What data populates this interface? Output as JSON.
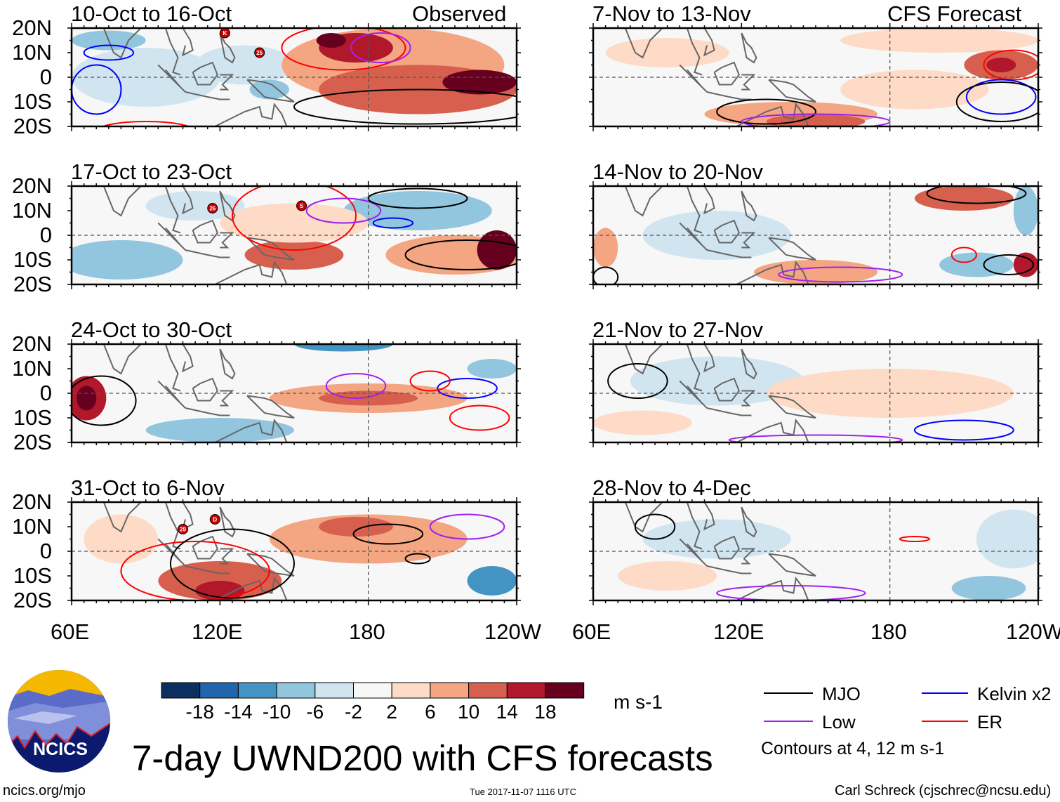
{
  "figure": {
    "title": "7-day UWND200 with CFS forecasts",
    "website": "ncics.org/mjo",
    "timestamp": "Tue 2017-11-07 1116 UTC",
    "author": "Carl Schreck (cjschrec@ncsu.edu)",
    "logo_text": "NCICS"
  },
  "columns": {
    "left_label": "Observed",
    "right_label": "CFS Forecast"
  },
  "panels_left": [
    {
      "title": "10-Oct to 16-Oct",
      "storms": [
        "K",
        "25"
      ]
    },
    {
      "title": "17-Oct to 23-Oct",
      "storms": [
        "26",
        "S"
      ]
    },
    {
      "title": "24-Oct to 30-Oct",
      "storms": []
    },
    {
      "title": "31-Oct to 6-Nov",
      "storms": [
        "29",
        "D"
      ]
    }
  ],
  "panels_right": [
    {
      "title": "7-Nov to 13-Nov"
    },
    {
      "title": "14-Nov to 20-Nov"
    },
    {
      "title": "21-Nov to 27-Nov"
    },
    {
      "title": "28-Nov to 4-Dec"
    }
  ],
  "axes": {
    "lat_labels": [
      "20N",
      "10N",
      "0",
      "10S",
      "20S"
    ],
    "lon_labels": [
      "60E",
      "120E",
      "180",
      "120W"
    ]
  },
  "colorbar": {
    "unit": "m s-1",
    "labels": [
      "-18",
      "-14",
      "-10",
      "-6",
      "-2",
      "2",
      "6",
      "10",
      "14",
      "18"
    ],
    "colors": [
      "#0b2f5e",
      "#2166ac",
      "#4393c3",
      "#92c5de",
      "#d1e5f0",
      "#f7f7f7",
      "#fddbc7",
      "#f4a582",
      "#d6604d",
      "#b2182b",
      "#67001f"
    ]
  },
  "legend": {
    "items": [
      {
        "label": "MJO",
        "color": "#000000"
      },
      {
        "label": "Kelvin x2",
        "color": "#0000ff"
      },
      {
        "label": "Low",
        "color": "#a020f0"
      },
      {
        "label": "ER",
        "color": "#ff0000"
      }
    ],
    "note": "Contours at 4, 12 m s-1"
  }
}
